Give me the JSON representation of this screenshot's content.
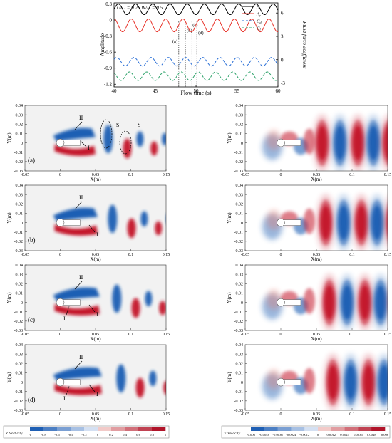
{
  "chart_data": [
    {
      "type": "line",
      "params_label": "G/D = 0.25  W/D = 0.5",
      "xlabel": "Flow time (s)",
      "ylabel_left": "Amplitude",
      "ylabel_right": "Fluid force coefficient",
      "xlim": [
        40,
        60
      ],
      "ylim_left": [
        -1.25,
        0.32
      ],
      "ylim_right": [
        -3.5,
        7.3
      ],
      "x_ticks": [
        40,
        45,
        50,
        55,
        60
      ],
      "y_ticks_left": [
        0.3,
        0,
        -0.3,
        -0.6,
        -0.9,
        -1.2
      ],
      "y_ticks_right": [
        6,
        3,
        0,
        -3
      ],
      "markers": [
        {
          "label": "(a)",
          "x": 47.9
        },
        {
          "label": "(b)",
          "x": 48.7
        },
        {
          "label": "(c)",
          "x": 49.5
        },
        {
          "label": "(d)",
          "x": 50.1
        }
      ],
      "series": [
        {
          "name": "A_x",
          "color": "#000000",
          "style": "solid",
          "axis": "left",
          "mean": 0.2,
          "amp": 0.1,
          "period": 2.1,
          "phase": 0.0
        },
        {
          "name": "A_y",
          "color": "#e8332a",
          "style": "solid",
          "axis": "left",
          "mean": -0.1,
          "amp": 0.12,
          "period": 2.1,
          "phase": 1.57
        },
        {
          "name": "C_d",
          "color": "#2a6fd6",
          "style": "dashed",
          "axis": "left",
          "mean": -0.78,
          "amp": 0.08,
          "period": 2.1,
          "phase": 0.6
        },
        {
          "name": "C_l",
          "color": "#2fa36b",
          "style": "dashed",
          "axis": "left",
          "mean": -1.05,
          "amp": 0.08,
          "period": 2.1,
          "phase": 2.2
        }
      ]
    },
    {
      "type": "heatmap",
      "field": "Z Vorticity",
      "xlabel": "X(m)",
      "ylabel": "Y(m)",
      "xlim": [
        -0.05,
        0.15
      ],
      "ylim": [
        -0.03,
        0.04
      ],
      "x_ticks": [
        "-0.05",
        "0",
        "0.05",
        "0.1",
        "0.15"
      ],
      "y_ticks": [
        "0.04",
        "0.03",
        "0.02",
        "0.01",
        "0",
        "-0.01",
        "-0.02",
        "-0.03"
      ],
      "colorbar_label": "Z Vorticity",
      "colorbar_ticks": [
        "-1",
        "-0.8",
        "-0.6",
        "-0.4",
        "-0.2",
        "0",
        "0.2",
        "0.4",
        "0.6",
        "0.8",
        "1"
      ],
      "panels": [
        {
          "label": "(a)",
          "annotations": [
            "II",
            "I",
            "S",
            "S"
          ]
        },
        {
          "label": "(b)",
          "annotations": [
            "II",
            "I"
          ]
        },
        {
          "label": "(c)",
          "annotations": [
            "II",
            "I'",
            "I"
          ]
        },
        {
          "label": "(d)",
          "annotations": [
            "II",
            "I'",
            "I"
          ]
        }
      ]
    },
    {
      "type": "heatmap",
      "field": "Y Velocity",
      "xlabel": "X(m)",
      "ylabel": "Y(m)",
      "xlim": [
        -0.05,
        0.15
      ],
      "ylim": [
        -0.03,
        0.04
      ],
      "x_ticks": [
        "-0.05",
        "0",
        "0.05",
        "0.1",
        "0.15"
      ],
      "y_ticks": [
        "0.04",
        "0.03",
        "0.02",
        "0.01",
        "0",
        "-0.01",
        "-0.02",
        "-0.03"
      ],
      "colorbar_label": "Y Velocity",
      "colorbar_ticks": [
        "-0.006",
        "-0.0048",
        "-0.0036",
        "-0.0024",
        "-0.0012",
        "0",
        "0.0012",
        "0.0024",
        "0.0036",
        "0.0048",
        "0.006"
      ]
    }
  ]
}
